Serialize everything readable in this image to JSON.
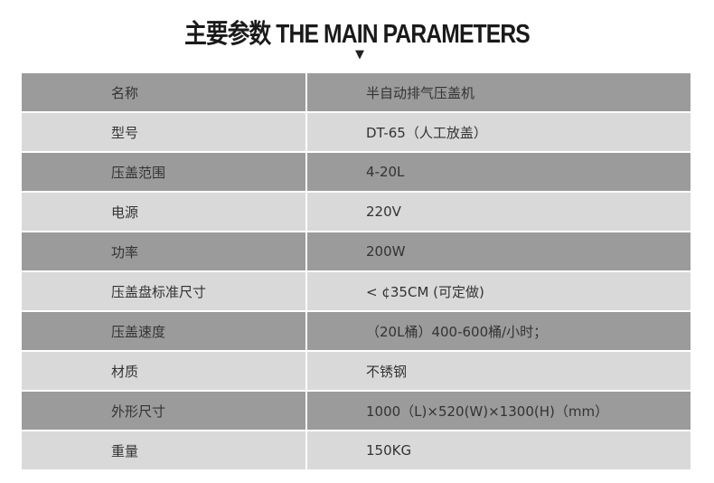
{
  "title": "主要参数 THE MAIN PARAMETERS",
  "arrow": "▼",
  "rows": [
    {
      "label": "名称",
      "value": "半自动排气压盖机"
    },
    {
      "label": "型号",
      "value": "DT-65（人工放盖）"
    },
    {
      "label": "压盖范围",
      "value": "4-20L"
    },
    {
      "label": "电源",
      "value": "220V"
    },
    {
      "label": "功率",
      "value": "200W"
    },
    {
      "label": "压盖盘标准尺寸",
      "value": "< ¢35CM (可定做)"
    },
    {
      "label": "压盖速度",
      "value": "（20L桶）400-600桶/小时；"
    },
    {
      "label": "材质",
      "value": "不锈钢"
    },
    {
      "label": "外形尺寸",
      "value": "1000（L)×520(W)×1300(H)（mm）"
    },
    {
      "label": "重量",
      "value": "150KG"
    }
  ]
}
